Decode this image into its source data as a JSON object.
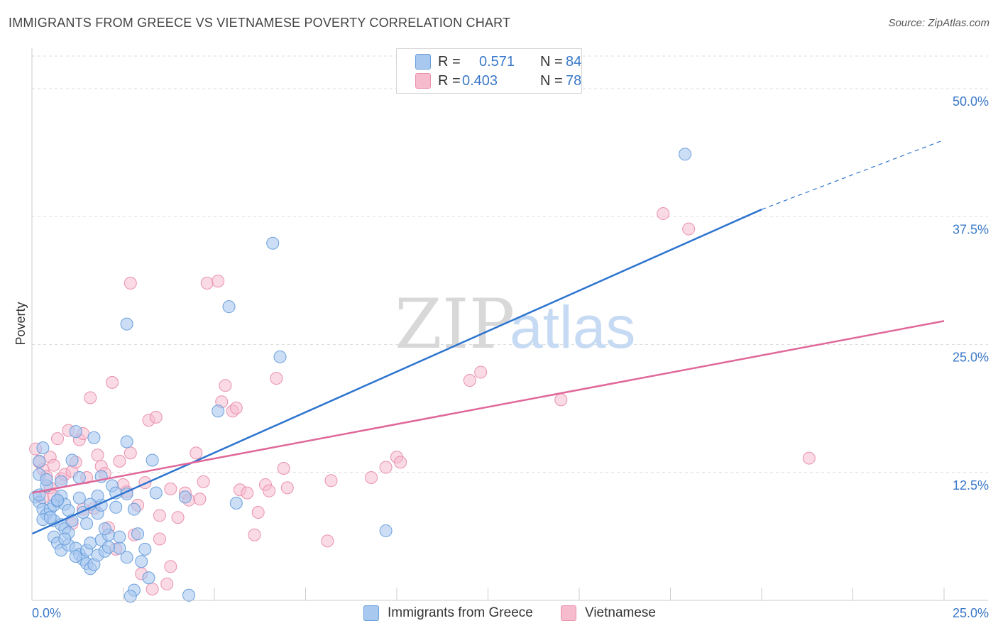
{
  "header": {
    "title": "IMMIGRANTS FROM GREECE VS VIETNAMESE POVERTY CORRELATION CHART",
    "source": "Source: ZipAtlas.com"
  },
  "legend_top": {
    "rows": [
      {
        "r_label": "R =",
        "r_value": "0.571",
        "n_label": "N =",
        "n_value": "84"
      },
      {
        "r_label": "R =",
        "r_value": "0.403",
        "n_label": "N =",
        "n_value": "78"
      }
    ]
  },
  "legend_bottom": {
    "series1": "Immigrants from Greece",
    "series2": "Vietnamese"
  },
  "watermark": {
    "part1": "ZIP",
    "part2": "atlas"
  },
  "colors": {
    "blue_fill": "#a9c8f0",
    "blue_stroke": "#6a9fdc",
    "blue_line": "#2d74cf",
    "pink_fill": "#f6bccd",
    "pink_stroke": "#e991ad",
    "pink_line": "#e0679a",
    "axis_label": "#3a78c9",
    "grid": "#dddddd"
  },
  "chart_data": {
    "type": "scatter",
    "title": "IMMIGRANTS FROM GREECE VS VIETNAMESE POVERTY CORRELATION CHART",
    "xlabel": "",
    "ylabel": "Poverty",
    "xlim": [
      0,
      25
    ],
    "ylim": [
      0,
      50
    ],
    "x_tick_labels": [
      "0.0%",
      "25.0%"
    ],
    "y_ticks": [
      12.5,
      25.0,
      37.5,
      50.0
    ],
    "y_tick_labels": [
      "12.5%",
      "25.0%",
      "37.5%",
      "50.0%"
    ],
    "grid": true,
    "legend_position": "top-center",
    "series": [
      {
        "name": "Immigrants from Greece",
        "color": "#a9c8f0",
        "r": 0.571,
        "n": 84,
        "trend": {
          "x": [
            0,
            20
          ],
          "y": [
            6.5,
            38.2
          ],
          "dashed_to": [
            25,
            45.0
          ]
        },
        "points": [
          [
            0.2,
            12.3
          ],
          [
            0.3,
            14.9
          ],
          [
            0.2,
            13.6
          ],
          [
            0.4,
            11.2
          ],
          [
            0.1,
            10.1
          ],
          [
            0.2,
            9.6
          ],
          [
            0.3,
            8.9
          ],
          [
            0.4,
            8.4
          ],
          [
            0.3,
            7.9
          ],
          [
            0.5,
            8.9
          ],
          [
            0.6,
            9.3
          ],
          [
            0.7,
            9.7
          ],
          [
            0.8,
            10.2
          ],
          [
            0.9,
            9.4
          ],
          [
            1.0,
            8.8
          ],
          [
            0.6,
            7.8
          ],
          [
            0.8,
            7.4
          ],
          [
            0.9,
            7.0
          ],
          [
            1.1,
            7.8
          ],
          [
            1.0,
            6.6
          ],
          [
            0.6,
            6.2
          ],
          [
            0.7,
            5.6
          ],
          [
            0.8,
            4.9
          ],
          [
            1.0,
            5.4
          ],
          [
            1.2,
            5.1
          ],
          [
            1.3,
            4.5
          ],
          [
            1.4,
            4.0
          ],
          [
            1.5,
            3.6
          ],
          [
            1.6,
            3.1
          ],
          [
            1.7,
            3.5
          ],
          [
            1.8,
            4.4
          ],
          [
            1.5,
            4.9
          ],
          [
            1.6,
            5.6
          ],
          [
            1.9,
            5.9
          ],
          [
            2.0,
            4.8
          ],
          [
            2.1,
            6.4
          ],
          [
            1.1,
            13.7
          ],
          [
            1.2,
            16.5
          ],
          [
            1.3,
            12.0
          ],
          [
            1.7,
            15.9
          ],
          [
            2.2,
            11.2
          ],
          [
            2.3,
            10.5
          ],
          [
            2.6,
            10.4
          ],
          [
            2.8,
            8.9
          ],
          [
            2.3,
            9.1
          ],
          [
            1.8,
            8.5
          ],
          [
            1.9,
            9.3
          ],
          [
            2.0,
            7.0
          ],
          [
            2.4,
            5.1
          ],
          [
            2.6,
            4.2
          ],
          [
            3.0,
            3.8
          ],
          [
            3.2,
            2.2
          ],
          [
            2.8,
            1.0
          ],
          [
            2.7,
            0.4
          ],
          [
            3.4,
            10.5
          ],
          [
            3.3,
            13.7
          ],
          [
            2.6,
            15.5
          ],
          [
            2.6,
            27.0
          ],
          [
            4.2,
            10.1
          ],
          [
            4.3,
            0.5
          ],
          [
            5.4,
            28.7
          ],
          [
            5.1,
            18.5
          ],
          [
            5.6,
            9.5
          ],
          [
            6.6,
            34.9
          ],
          [
            6.8,
            23.8
          ],
          [
            9.7,
            6.8
          ],
          [
            17.9,
            43.6
          ],
          [
            0.8,
            11.6
          ],
          [
            1.3,
            10.0
          ],
          [
            1.9,
            12.1
          ],
          [
            2.4,
            6.2
          ],
          [
            0.5,
            8.1
          ],
          [
            0.7,
            9.8
          ],
          [
            1.5,
            7.5
          ],
          [
            1.2,
            4.3
          ],
          [
            2.1,
            5.2
          ],
          [
            0.2,
            10.3
          ],
          [
            0.4,
            11.8
          ],
          [
            1.4,
            8.6
          ],
          [
            1.6,
            9.4
          ],
          [
            1.8,
            10.2
          ],
          [
            2.9,
            6.5
          ],
          [
            3.1,
            5.0
          ],
          [
            0.9,
            6.0
          ]
        ]
      },
      {
        "name": "Vietnamese",
        "color": "#f6bccd",
        "r": 0.403,
        "n": 78,
        "trend": {
          "x": [
            0,
            25
          ],
          "y": [
            10.5,
            27.3
          ]
        },
        "points": [
          [
            0.1,
            14.8
          ],
          [
            0.2,
            13.5
          ],
          [
            0.3,
            12.8
          ],
          [
            0.4,
            12.1
          ],
          [
            0.5,
            14.0
          ],
          [
            0.6,
            13.2
          ],
          [
            0.7,
            15.8
          ],
          [
            0.8,
            11.9
          ],
          [
            0.9,
            12.3
          ],
          [
            1.0,
            16.6
          ],
          [
            1.1,
            12.6
          ],
          [
            1.2,
            13.5
          ],
          [
            1.3,
            15.7
          ],
          [
            1.4,
            16.3
          ],
          [
            1.5,
            12.0
          ],
          [
            1.6,
            19.8
          ],
          [
            1.8,
            14.2
          ],
          [
            1.9,
            13.1
          ],
          [
            2.0,
            12.4
          ],
          [
            2.2,
            21.3
          ],
          [
            2.4,
            13.6
          ],
          [
            2.5,
            11.3
          ],
          [
            2.6,
            10.6
          ],
          [
            2.7,
            14.4
          ],
          [
            2.9,
            9.3
          ],
          [
            3.1,
            11.5
          ],
          [
            3.2,
            17.6
          ],
          [
            3.4,
            17.9
          ],
          [
            3.5,
            8.3
          ],
          [
            3.8,
            10.9
          ],
          [
            4.0,
            8.1
          ],
          [
            4.2,
            10.5
          ],
          [
            4.3,
            9.8
          ],
          [
            4.5,
            14.4
          ],
          [
            4.7,
            11.6
          ],
          [
            4.8,
            31.0
          ],
          [
            5.1,
            31.2
          ],
          [
            5.2,
            19.4
          ],
          [
            5.3,
            21.0
          ],
          [
            5.5,
            18.5
          ],
          [
            5.6,
            18.8
          ],
          [
            5.7,
            10.8
          ],
          [
            5.9,
            10.5
          ],
          [
            6.1,
            6.4
          ],
          [
            6.2,
            8.6
          ],
          [
            6.4,
            11.3
          ],
          [
            6.5,
            10.7
          ],
          [
            6.7,
            21.7
          ],
          [
            6.9,
            12.9
          ],
          [
            7.0,
            11.0
          ],
          [
            8.1,
            5.8
          ],
          [
            8.2,
            11.7
          ],
          [
            9.3,
            12.0
          ],
          [
            9.7,
            13.0
          ],
          [
            10.0,
            14.0
          ],
          [
            10.1,
            13.5
          ],
          [
            12.0,
            21.5
          ],
          [
            12.3,
            22.3
          ],
          [
            14.5,
            19.6
          ],
          [
            17.3,
            37.8
          ],
          [
            18.0,
            36.3
          ],
          [
            21.3,
            13.9
          ],
          [
            2.7,
            31.0
          ],
          [
            0.3,
            10.0
          ],
          [
            0.5,
            11.0
          ],
          [
            1.7,
            9.0
          ],
          [
            2.1,
            7.1
          ],
          [
            2.8,
            6.4
          ],
          [
            3.0,
            2.6
          ],
          [
            3.3,
            1.1
          ],
          [
            3.7,
            1.6
          ],
          [
            3.5,
            6.0
          ],
          [
            1.1,
            7.5
          ],
          [
            2.3,
            5.0
          ],
          [
            1.4,
            8.9
          ],
          [
            0.6,
            10.2
          ],
          [
            3.8,
            3.3
          ],
          [
            4.6,
            9.9
          ]
        ]
      }
    ]
  }
}
